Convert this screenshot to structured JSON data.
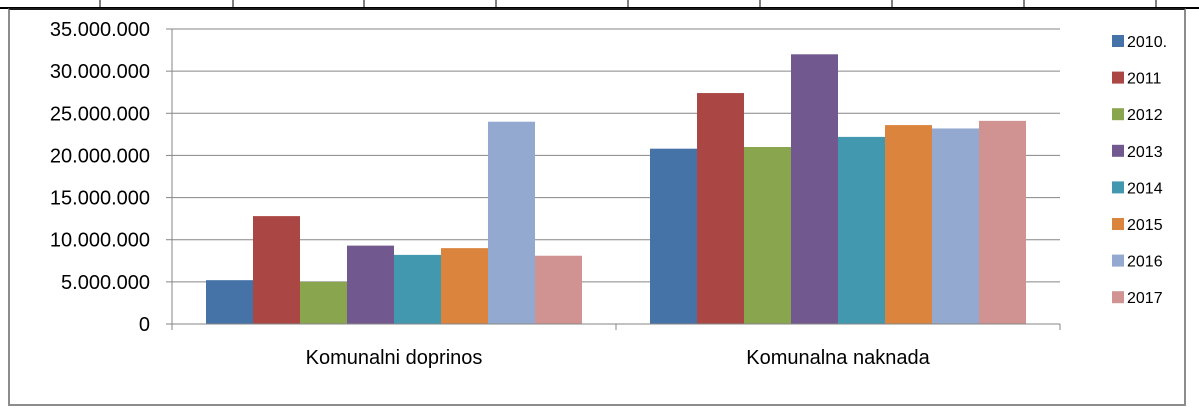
{
  "chart_data": {
    "type": "bar",
    "categories": [
      "Komunalni doprinos",
      "Komunalna naknada"
    ],
    "series": [
      {
        "name": "2010.",
        "color": "#4572A7",
        "values": [
          5200000,
          20800000
        ]
      },
      {
        "name": "2011",
        "color": "#AA4643",
        "values": [
          12800000,
          27400000
        ]
      },
      {
        "name": "2012",
        "color": "#89A54E",
        "values": [
          5000000,
          21000000
        ]
      },
      {
        "name": "2013",
        "color": "#71588F",
        "values": [
          9300000,
          32000000
        ]
      },
      {
        "name": "2014",
        "color": "#4198AF",
        "values": [
          8200000,
          22200000
        ]
      },
      {
        "name": "2015",
        "color": "#DB843D",
        "values": [
          9000000,
          23600000
        ]
      },
      {
        "name": "2016",
        "color": "#93A9CF",
        "values": [
          24000000,
          23200000
        ]
      },
      {
        "name": "2017",
        "color": "#D19392",
        "values": [
          8100000,
          24100000
        ]
      }
    ],
    "y_ticks": [
      "0",
      "5.000.000",
      "10.000.000",
      "15.000.000",
      "20.000.000",
      "25.000.000",
      "30.000.000",
      "35.000.000"
    ],
    "ylim": [
      0,
      35000000
    ],
    "grid": true,
    "legend_position": "right"
  }
}
